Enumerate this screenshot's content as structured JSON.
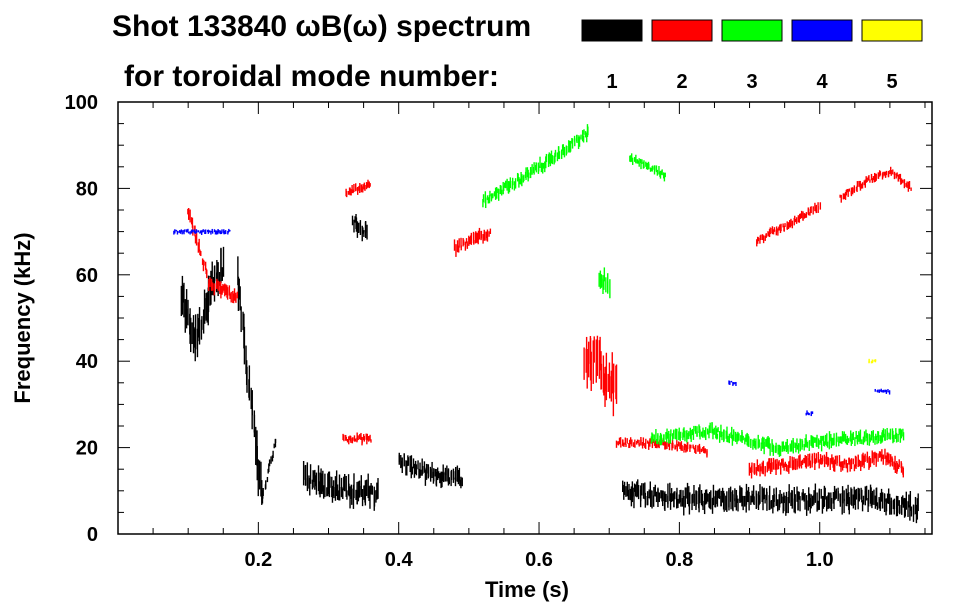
{
  "chart_data": {
    "type": "scatter",
    "title": "Shot 133840 ωB(ω) spectrum",
    "subtitle": "for toroidal mode number:",
    "xlabel": "Time (s)",
    "ylabel": "Frequency (kHz)",
    "xlim": [
      0.0,
      1.16
    ],
    "ylim": [
      0,
      100
    ],
    "x_ticks": [
      0.2,
      0.4,
      0.6,
      0.8,
      1.0
    ],
    "x_tick_labels": [
      "0.2",
      "0.4",
      "0.6",
      "0.8",
      "1.0"
    ],
    "y_ticks": [
      0,
      20,
      40,
      60,
      80,
      100
    ],
    "y_tick_labels": [
      "0",
      "20",
      "40",
      "60",
      "80",
      "100"
    ],
    "legend": [
      {
        "label": "1",
        "color": "#000000"
      },
      {
        "label": "2",
        "color": "#ff0000"
      },
      {
        "label": "3",
        "color": "#00ff00"
      },
      {
        "label": "4",
        "color": "#0000ff"
      },
      {
        "label": "5",
        "color": "#ffff00"
      }
    ],
    "series": [
      {
        "name": "1",
        "color": "#000000",
        "segments": [
          {
            "t": [
              0.09,
              0.11,
              0.13,
              0.15
            ],
            "f": [
              55,
              45,
              55,
              62
            ],
            "spread": 9
          },
          {
            "t": [
              0.17,
              0.19,
              0.205
            ],
            "f": [
              60,
              30,
              10
            ],
            "spread": 10
          },
          {
            "t": [
              0.205,
              0.225
            ],
            "f": [
              8,
              22
            ],
            "spread": 2
          },
          {
            "t": [
              0.265,
              0.3,
              0.34,
              0.37
            ],
            "f": [
              13,
              11,
              10,
              9
            ],
            "spread": 6
          },
          {
            "t": [
              0.335,
              0.355
            ],
            "f": [
              72,
              70
            ],
            "spread": 4
          },
          {
            "t": [
              0.4,
              0.44,
              0.49
            ],
            "f": [
              17,
              14,
              13
            ],
            "spread": 4
          },
          {
            "t": [
              0.72,
              0.8,
              0.9,
              1.0,
              1.08,
              1.14
            ],
            "f": [
              10,
              8,
              8,
              8,
              8,
              6
            ],
            "spread": 5
          }
        ]
      },
      {
        "name": "2",
        "color": "#ff0000",
        "segments": [
          {
            "t": [
              0.1,
              0.13,
              0.17
            ],
            "f": [
              75,
              58,
              55
            ],
            "spread": 3
          },
          {
            "t": [
              0.32,
              0.36
            ],
            "f": [
              22,
              22
            ],
            "spread": 2
          },
          {
            "t": [
              0.325,
              0.36
            ],
            "f": [
              79,
              81
            ],
            "spread": 2
          },
          {
            "t": [
              0.48,
              0.53
            ],
            "f": [
              66,
              70
            ],
            "spread": 3
          },
          {
            "t": [
              0.665,
              0.69,
              0.71
            ],
            "f": [
              42,
              38,
              33
            ],
            "spread": 11
          },
          {
            "t": [
              0.71,
              0.78,
              0.84
            ],
            "f": [
              21,
              21,
              19
            ],
            "spread": 2
          },
          {
            "t": [
              0.9,
              0.96,
              1.0,
              1.05,
              1.09,
              1.12
            ],
            "f": [
              15,
              16,
              17,
              16,
              18,
              15
            ],
            "spread": 3
          },
          {
            "t": [
              0.91,
              0.96,
              1.0
            ],
            "f": [
              68,
              72,
              76
            ],
            "spread": 2
          },
          {
            "t": [
              1.03,
              1.07,
              1.1,
              1.13
            ],
            "f": [
              78,
              82,
              84,
              80
            ],
            "spread": 2
          }
        ]
      },
      {
        "name": "3",
        "color": "#00ff00",
        "segments": [
          {
            "t": [
              0.52,
              0.57,
              0.62,
              0.67
            ],
            "f": [
              77,
              82,
              87,
              93
            ],
            "spread": 3
          },
          {
            "t": [
              0.73,
              0.78
            ],
            "f": [
              87,
              83
            ],
            "spread": 2
          },
          {
            "t": [
              0.685,
              0.7
            ],
            "f": [
              60,
              58
            ],
            "spread": 5
          },
          {
            "t": [
              0.76,
              0.84,
              0.94,
              1.04,
              1.12
            ],
            "f": [
              22,
              24,
              20,
              22,
              23
            ],
            "spread": 3
          }
        ]
      },
      {
        "name": "4",
        "color": "#0000ff",
        "segments": [
          {
            "t": [
              0.08,
              0.16
            ],
            "f": [
              70,
              70
            ],
            "spread": 1
          },
          {
            "t": [
              0.87,
              0.88
            ],
            "f": [
              35,
              35
            ],
            "spread": 1
          },
          {
            "t": [
              0.98,
              0.99
            ],
            "f": [
              28,
              28
            ],
            "spread": 1
          },
          {
            "t": [
              1.08,
              1.1
            ],
            "f": [
              33,
              33
            ],
            "spread": 1
          }
        ]
      },
      {
        "name": "5",
        "color": "#ffff00",
        "segments": [
          {
            "t": [
              1.07,
              1.08
            ],
            "f": [
              40,
              40
            ],
            "spread": 1
          }
        ]
      }
    ]
  }
}
